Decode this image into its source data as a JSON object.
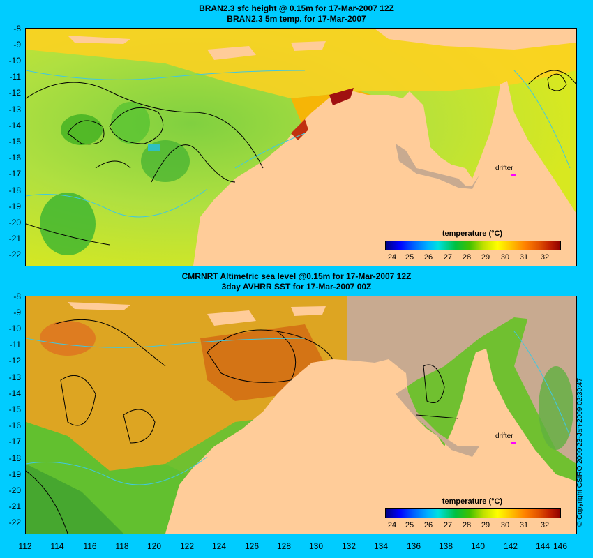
{
  "top": {
    "title_line1": "BRAN2.3 sfc height @ 0.15m for 17-Mar-2007 12Z",
    "title_line2": "BRAN2.3 5m temp. for 17-Mar-2007"
  },
  "bottom": {
    "title_line1": "CMRNRT Altimetric sea level  @0.15m  for 17-Mar-2007 12Z",
    "title_line2": "3day AVHRR SST for 17-Mar-2007 00Z"
  },
  "y_axis_labels": [
    "-8",
    "-9",
    "-10",
    "-11",
    "-12",
    "-13",
    "-14",
    "-15",
    "-16",
    "-17",
    "-18",
    "-19",
    "-20",
    "-21",
    "-22"
  ],
  "x_axis_labels": [
    "112",
    "114",
    "116",
    "118",
    "120",
    "122",
    "124",
    "126",
    "128",
    "130",
    "132",
    "134",
    "136",
    "138",
    "140",
    "142",
    "144",
    "146"
  ],
  "legend": {
    "title": "temperature (°C)",
    "ticks": [
      "24",
      "25",
      "26",
      "27",
      "28",
      "29",
      "30",
      "31",
      "32"
    ]
  },
  "drifter_label": "drifter",
  "copyright": "© Copyright CSIRO 2009   23-Jan-2009 02:30:47",
  "colors": {
    "background": "#00ccff",
    "land": "#ffcc99",
    "no_data": "#c8aa90",
    "drifter": "#ff00ff"
  }
}
